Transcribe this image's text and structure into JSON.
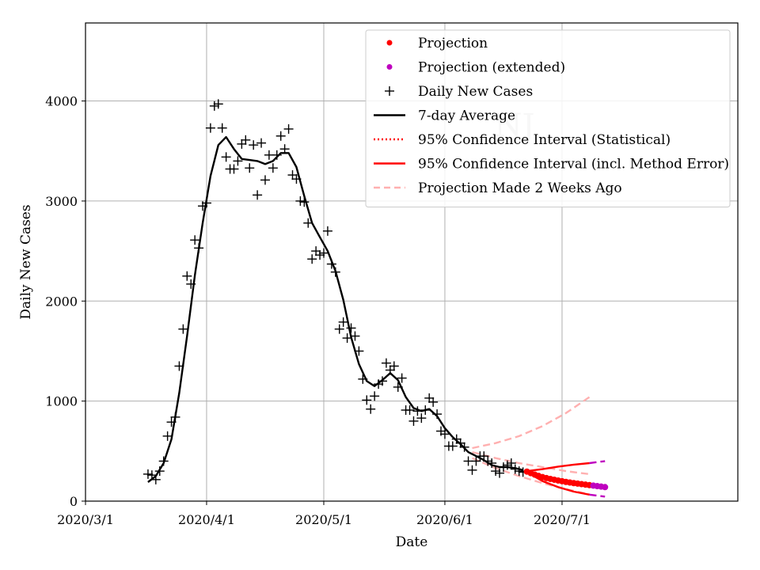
{
  "chart_data": {
    "type": "line",
    "xlabel": "Date",
    "ylabel": "Daily New Cases",
    "watermark": "NJ",
    "x_ticks": [
      "2020/3/1",
      "2020/4/1",
      "2020/5/1",
      "2020/6/1",
      "2020/7/1"
    ],
    "y_ticks": [
      "0",
      "1000",
      "2000",
      "3000",
      "4000"
    ],
    "x_range": [
      "2020-03-01",
      "2020-08-15"
    ],
    "ylim": [
      0,
      4780
    ],
    "grid": true,
    "legend_position": "top-right",
    "legend": [
      {
        "label": "Projection",
        "marker": "dot",
        "color": "#ff0000"
      },
      {
        "label": "Projection (extended)",
        "marker": "dot",
        "color": "#bf00bf"
      },
      {
        "label": "Daily New Cases",
        "marker": "plus",
        "color": "#000000"
      },
      {
        "label": "7-day Average",
        "marker": "line",
        "color": "#000000"
      },
      {
        "label": "95% Confidence Interval (Statistical)",
        "marker": "dotted",
        "color": "#ff0000"
      },
      {
        "label": "95% Confidence Interval (incl. Method Error)",
        "marker": "line",
        "color": "#ff0000"
      },
      {
        "label": "Projection Made 2 Weeks Ago",
        "marker": "dashed",
        "color": "#ffb0b0"
      }
    ],
    "series": [
      {
        "name": "Daily New Cases",
        "style": "plus",
        "color": "#000000",
        "x": [
          "2020-03-17",
          "2020-03-18",
          "2020-03-19",
          "2020-03-20",
          "2020-03-21",
          "2020-03-22",
          "2020-03-23",
          "2020-03-24",
          "2020-03-25",
          "2020-03-26",
          "2020-03-27",
          "2020-03-28",
          "2020-03-29",
          "2020-03-30",
          "2020-03-31",
          "2020-04-01",
          "2020-04-02",
          "2020-04-03",
          "2020-04-04",
          "2020-04-05",
          "2020-04-06",
          "2020-04-07",
          "2020-04-08",
          "2020-04-09",
          "2020-04-10",
          "2020-04-11",
          "2020-04-12",
          "2020-04-13",
          "2020-04-14",
          "2020-04-15",
          "2020-04-16",
          "2020-04-17",
          "2020-04-18",
          "2020-04-19",
          "2020-04-20",
          "2020-04-21",
          "2020-04-22",
          "2020-04-23",
          "2020-04-24",
          "2020-04-25",
          "2020-04-26",
          "2020-04-27",
          "2020-04-28",
          "2020-04-29",
          "2020-04-30",
          "2020-05-01",
          "2020-05-02",
          "2020-05-03",
          "2020-05-04",
          "2020-05-05",
          "2020-05-06",
          "2020-05-07",
          "2020-05-08",
          "2020-05-09",
          "2020-05-10",
          "2020-05-11",
          "2020-05-12",
          "2020-05-13",
          "2020-05-14",
          "2020-05-15",
          "2020-05-16",
          "2020-05-17",
          "2020-05-18",
          "2020-05-19",
          "2020-05-20",
          "2020-05-21",
          "2020-05-22",
          "2020-05-23",
          "2020-05-24",
          "2020-05-25",
          "2020-05-26",
          "2020-05-27",
          "2020-05-28",
          "2020-05-29",
          "2020-05-30",
          "2020-05-31",
          "2020-06-01",
          "2020-06-02",
          "2020-06-03",
          "2020-06-04",
          "2020-06-05",
          "2020-06-06",
          "2020-06-07",
          "2020-06-08",
          "2020-06-09",
          "2020-06-10",
          "2020-06-11",
          "2020-06-12",
          "2020-06-13",
          "2020-06-14",
          "2020-06-15",
          "2020-06-16",
          "2020-06-17",
          "2020-06-18",
          "2020-06-19",
          "2020-06-20",
          "2020-06-21"
        ],
        "values": [
          270,
          260,
          215,
          300,
          400,
          650,
          790,
          840,
          1350,
          1720,
          2250,
          2170,
          2610,
          2530,
          2950,
          2980,
          3730,
          3950,
          3970,
          3730,
          3440,
          3320,
          3320,
          3400,
          3570,
          3610,
          3330,
          3560,
          3060,
          3580,
          3210,
          3460,
          3330,
          3460,
          3650,
          3520,
          3720,
          3260,
          3220,
          3000,
          2990,
          2780,
          2420,
          2500,
          2460,
          2480,
          2700,
          2370,
          2290,
          1720,
          1790,
          1630,
          1730,
          1650,
          1500,
          1220,
          1010,
          920,
          1050,
          1170,
          1200,
          1380,
          1310,
          1350,
          1140,
          1230,
          910,
          910,
          800,
          900,
          830,
          910,
          1030,
          990,
          870,
          700,
          670,
          550,
          550,
          620,
          580,
          540,
          400,
          310,
          400,
          450,
          450,
          400,
          380,
          300,
          280,
          340,
          360,
          380,
          320,
          300,
          290
        ]
      },
      {
        "name": "7-day Average",
        "style": "line",
        "color": "#000000",
        "x": [
          "2020-03-17",
          "2020-03-19",
          "2020-03-21",
          "2020-03-23",
          "2020-03-25",
          "2020-03-27",
          "2020-03-29",
          "2020-03-31",
          "2020-04-02",
          "2020-04-04",
          "2020-04-06",
          "2020-04-08",
          "2020-04-10",
          "2020-04-12",
          "2020-04-14",
          "2020-04-16",
          "2020-04-18",
          "2020-04-20",
          "2020-04-22",
          "2020-04-24",
          "2020-04-26",
          "2020-04-28",
          "2020-04-30",
          "2020-05-02",
          "2020-05-04",
          "2020-05-06",
          "2020-05-08",
          "2020-05-10",
          "2020-05-12",
          "2020-05-14",
          "2020-05-16",
          "2020-05-18",
          "2020-05-20",
          "2020-05-22",
          "2020-05-24",
          "2020-05-26",
          "2020-05-28",
          "2020-05-30",
          "2020-06-01",
          "2020-06-03",
          "2020-06-05",
          "2020-06-07",
          "2020-06-09",
          "2020-06-11",
          "2020-06-13",
          "2020-06-15",
          "2020-06-17",
          "2020-06-19",
          "2020-06-21"
        ],
        "values": [
          190,
          250,
          380,
          620,
          1080,
          1650,
          2260,
          2780,
          3250,
          3560,
          3640,
          3520,
          3420,
          3410,
          3400,
          3370,
          3400,
          3480,
          3480,
          3340,
          3050,
          2780,
          2640,
          2500,
          2300,
          2010,
          1640,
          1370,
          1200,
          1150,
          1210,
          1280,
          1210,
          1040,
          930,
          900,
          920,
          850,
          730,
          640,
          570,
          490,
          450,
          410,
          360,
          340,
          340,
          330,
          310
        ]
      },
      {
        "name": "Projection",
        "style": "dot",
        "color": "#ff0000",
        "x": [
          "2020-06-22",
          "2020-06-23",
          "2020-06-24",
          "2020-06-25",
          "2020-06-26",
          "2020-06-27",
          "2020-06-28",
          "2020-06-29",
          "2020-06-30",
          "2020-07-01",
          "2020-07-02",
          "2020-07-03",
          "2020-07-04",
          "2020-07-05",
          "2020-07-06",
          "2020-07-07",
          "2020-07-08"
        ],
        "values": [
          295,
          280,
          265,
          252,
          240,
          230,
          222,
          214,
          206,
          199,
          192,
          186,
          180,
          175,
          170,
          165,
          160
        ]
      },
      {
        "name": "Projection (extended)",
        "style": "dot",
        "color": "#bf00bf",
        "x": [
          "2020-07-09",
          "2020-07-10",
          "2020-07-11",
          "2020-07-12"
        ],
        "values": [
          155,
          150,
          145,
          140
        ]
      },
      {
        "name": "95% Confidence Interval (incl. Method Error) - upper",
        "style": "line",
        "color": "#ff0000",
        "x": [
          "2020-06-22",
          "2020-06-26",
          "2020-06-30",
          "2020-07-04",
          "2020-07-08"
        ],
        "values": [
          300,
          320,
          345,
          365,
          380
        ]
      },
      {
        "name": "95% Confidence Interval (incl. Method Error) - lower",
        "style": "line",
        "color": "#ff0000",
        "x": [
          "2020-06-22",
          "2020-06-26",
          "2020-06-30",
          "2020-07-04",
          "2020-07-08"
        ],
        "values": [
          290,
          200,
          140,
          95,
          65
        ]
      },
      {
        "name": "Extended upper bound",
        "style": "dashed",
        "color": "#bf00bf",
        "x": [
          "2020-07-08",
          "2020-07-12"
        ],
        "values": [
          380,
          400
        ]
      },
      {
        "name": "Extended lower bound",
        "style": "dashed",
        "color": "#bf00bf",
        "x": [
          "2020-07-08",
          "2020-07-12"
        ],
        "values": [
          65,
          45
        ]
      },
      {
        "name": "Projection Made 2 Weeks Ago - upper",
        "style": "dashed",
        "color": "#ffb0b0",
        "x": [
          "2020-06-08",
          "2020-06-14",
          "2020-06-20",
          "2020-06-26",
          "2020-07-02",
          "2020-07-08"
        ],
        "values": [
          530,
          580,
          650,
          750,
          880,
          1040
        ]
      },
      {
        "name": "Projection Made 2 Weeks Ago - center",
        "style": "dashed",
        "color": "#ffb0b0",
        "x": [
          "2020-06-08",
          "2020-06-14",
          "2020-06-20",
          "2020-06-26",
          "2020-07-02",
          "2020-07-08"
        ],
        "values": [
          490,
          430,
          380,
          340,
          300,
          270
        ]
      },
      {
        "name": "Projection Made 2 Weeks Ago - lower",
        "style": "dashed",
        "color": "#ffb0b0",
        "x": [
          "2020-06-08",
          "2020-06-14",
          "2020-06-20",
          "2020-06-26",
          "2020-07-02",
          "2020-07-08"
        ],
        "values": [
          430,
          330,
          250,
          180,
          120,
          70
        ]
      }
    ]
  }
}
